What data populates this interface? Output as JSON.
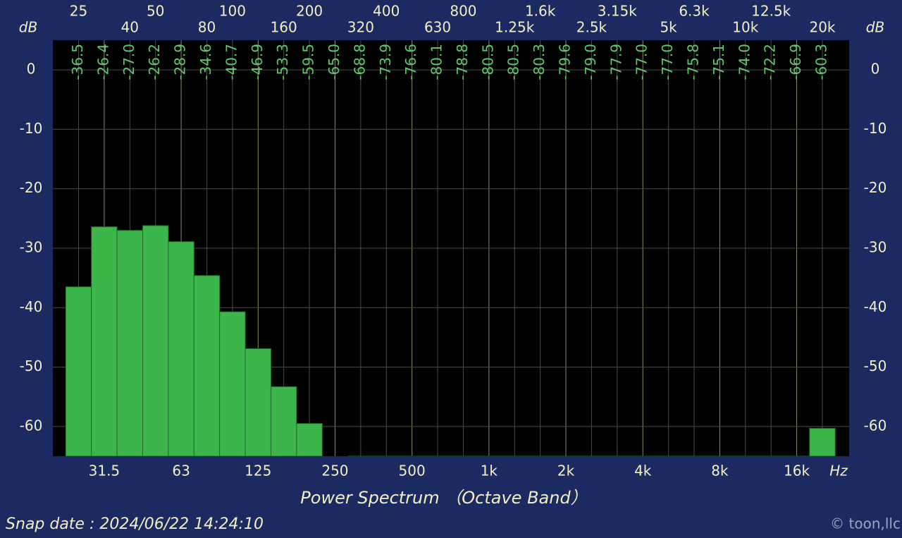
{
  "chart_data": {
    "type": "bar",
    "xlabel": "Power Spectrum （Octave Band）",
    "ylabel": "dB",
    "xunit": "Hz",
    "categories": [
      "25",
      "31.5",
      "40",
      "50",
      "63",
      "80",
      "100",
      "125",
      "160",
      "200",
      "250",
      "320",
      "400",
      "500",
      "630",
      "800",
      "1k",
      "1.25k",
      "1.6k",
      "2k",
      "2.5k",
      "3.15k",
      "4k",
      "5k",
      "6.3k",
      "8k",
      "10k",
      "12.5k",
      "16k",
      "20k"
    ],
    "values": [
      -36.5,
      -26.4,
      -27.0,
      -26.2,
      -28.9,
      -34.6,
      -40.7,
      -46.9,
      -53.3,
      -59.5,
      -65.0,
      -68.8,
      -73.9,
      -76.6,
      -80.1,
      -78.8,
      -80.5,
      -80.5,
      -80.3,
      -79.6,
      -79.0,
      -77.9,
      -77.0,
      -77.0,
      -75.8,
      -75.1,
      -74.0,
      -72.2,
      -66.9,
      -60.3
    ],
    "value_labels": [
      "-36.5",
      "-26.4",
      "-27.0",
      "-26.2",
      "-28.9",
      "-34.6",
      "-40.7",
      "-46.9",
      "-53.3",
      "-59.5",
      "-65.0",
      "-68.8",
      "-73.9",
      "-76.6",
      "-80.1",
      "-78.8",
      "-80.5",
      "-80.5",
      "-80.3",
      "-79.6",
      "-79.0",
      "-77.9",
      "-77.0",
      "-77.0",
      "-75.8",
      "-75.1",
      "-74.0",
      "-72.2",
      "-66.9",
      "-60.3"
    ],
    "color": "#3cb54a",
    "value_label_color": "#5ec86c",
    "ylim": [
      -65,
      5
    ],
    "yticks": [
      0,
      -10,
      -20,
      -30,
      -40,
      -50,
      -60
    ],
    "grid": true
  },
  "footer": {
    "snap_date": "Snap date : 2024/06/22 14:24:10",
    "copyright": "© toon,llc"
  }
}
